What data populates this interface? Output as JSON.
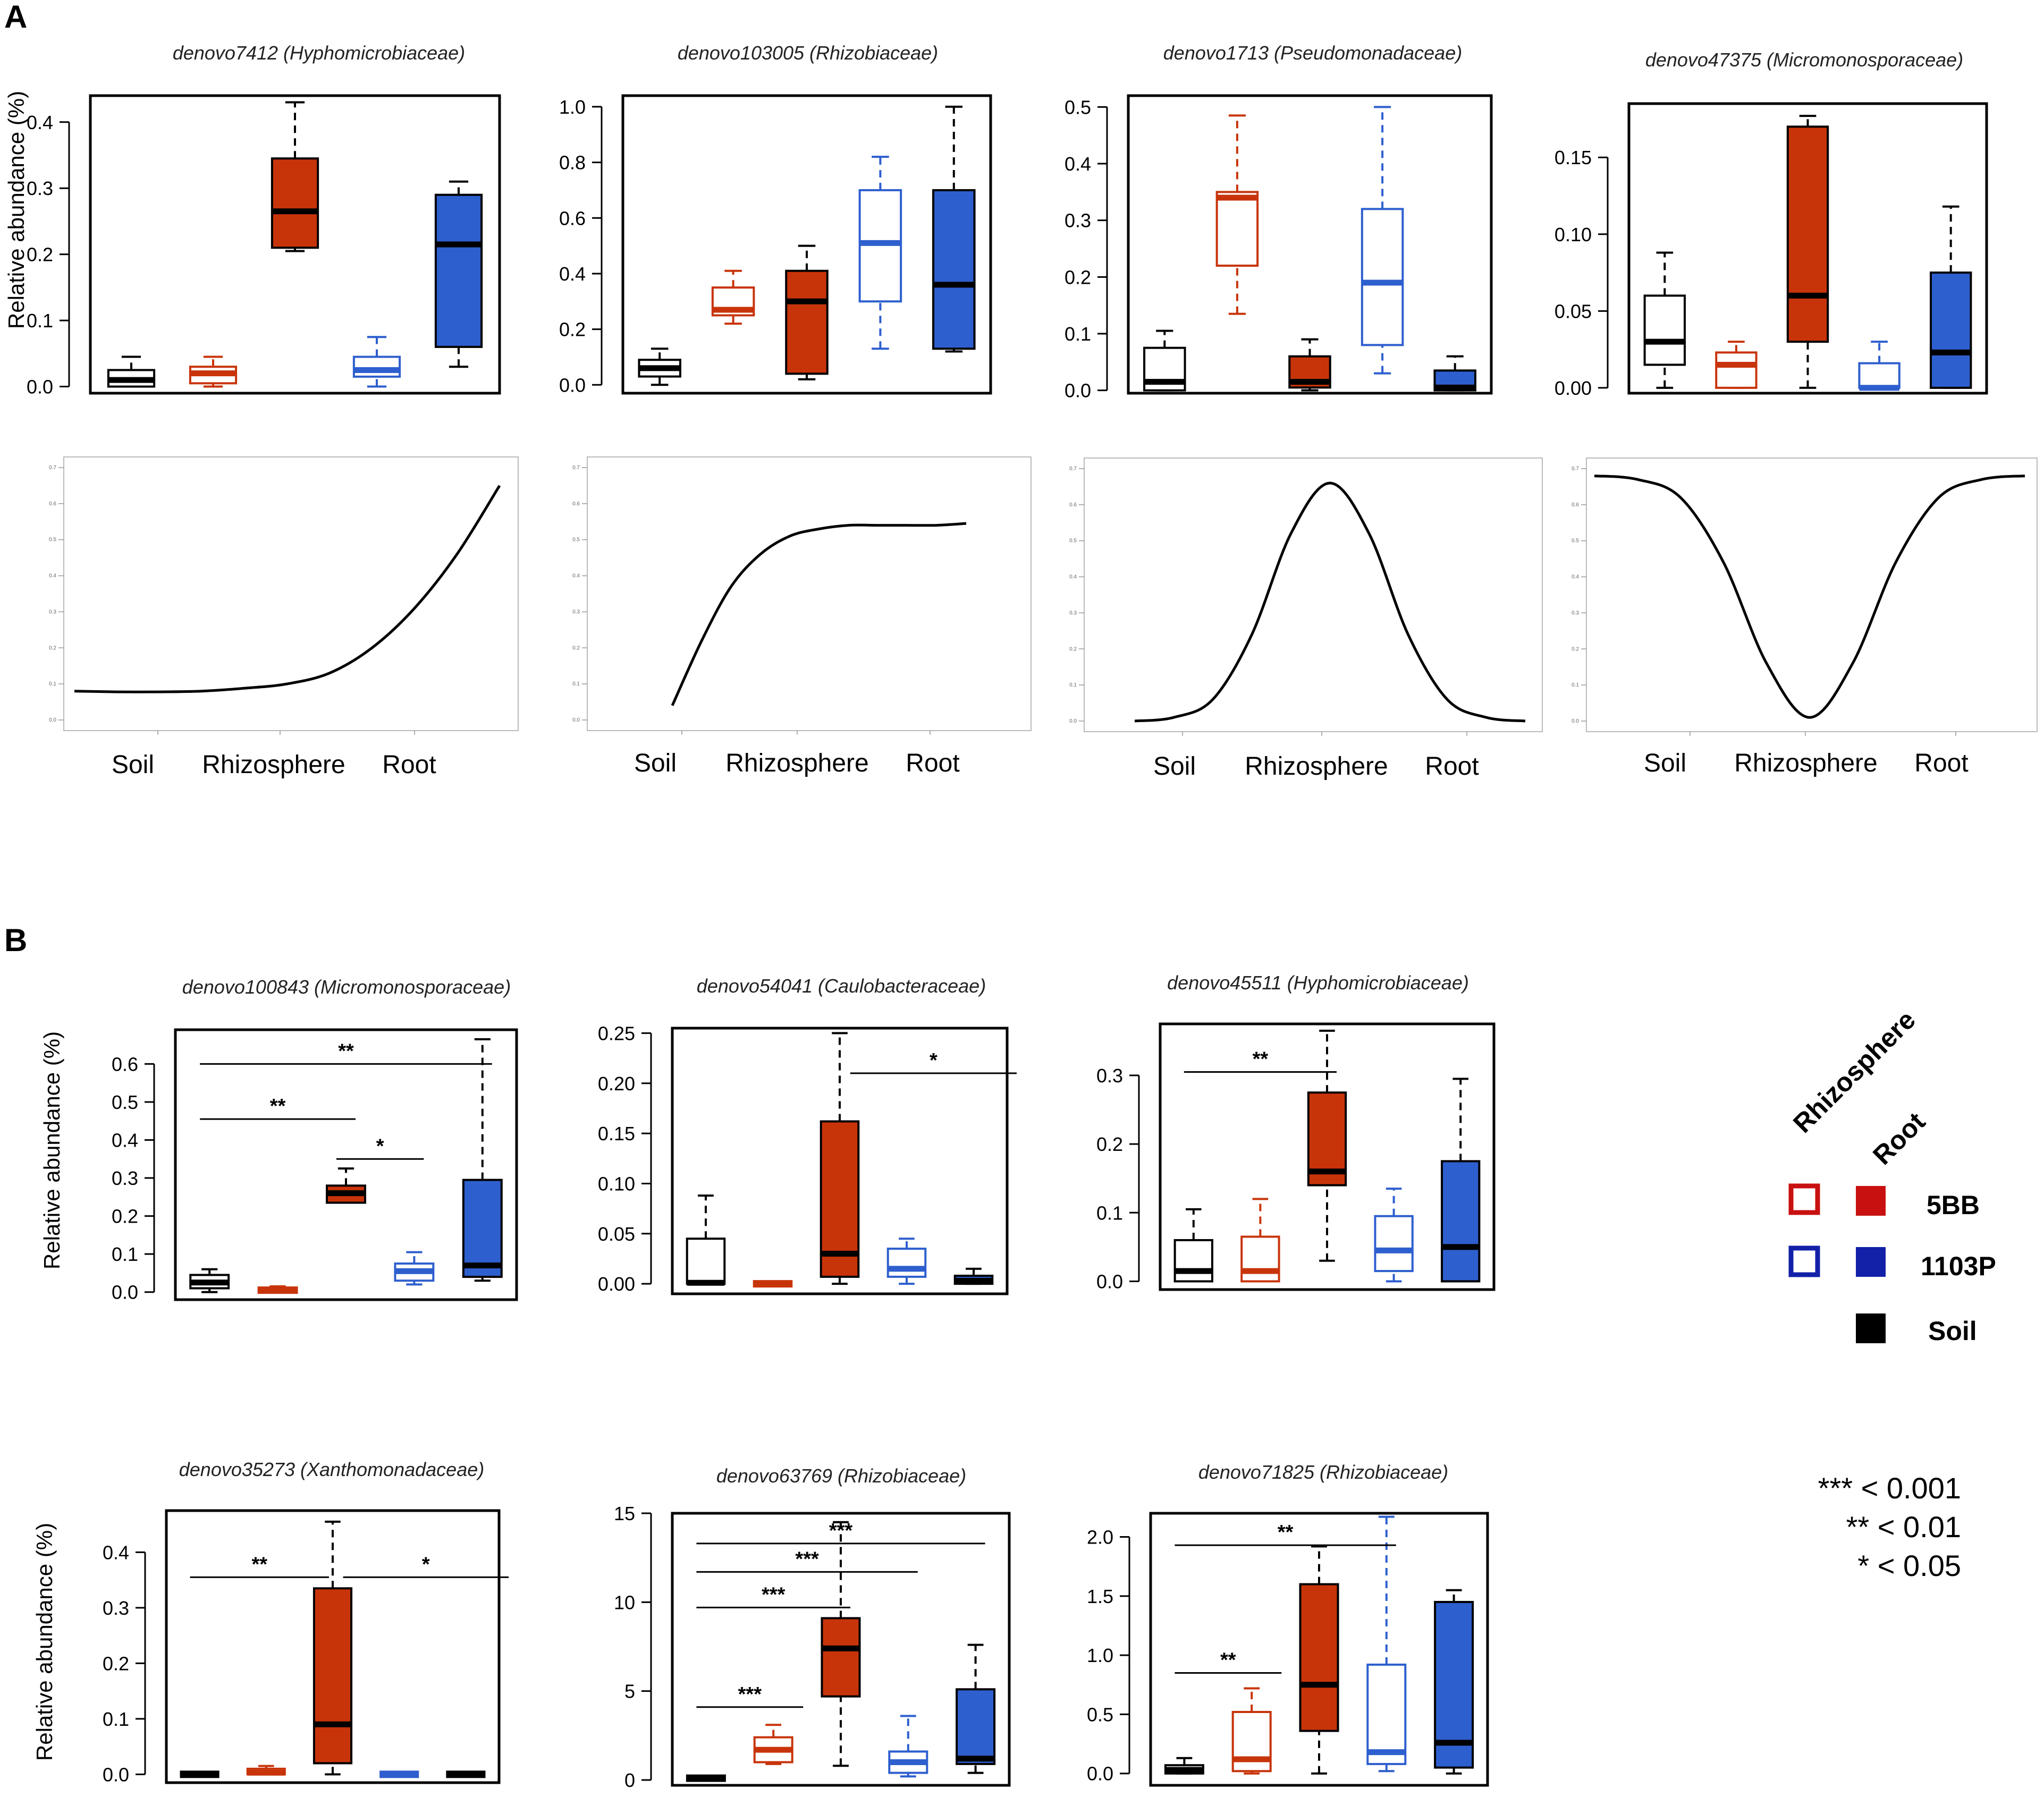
{
  "panels": {
    "a": "A",
    "b": "B"
  },
  "colors": {
    "soil": "#000000",
    "c5bb": "#c8340a",
    "c1103p": "#2e5fce",
    "legend5bb": "#c81010",
    "legend1103p": "#1320a8"
  },
  "groups": [
    "Soil",
    "5BB Rhizosphere",
    "5BB Root",
    "1103P Rhizosphere",
    "1103P Root"
  ],
  "axis_y_label": "Relative abundance (%)",
  "curve_x_labels": [
    "Soil",
    "Rhizosphere",
    "Root"
  ],
  "legend": {
    "col1": "Rhizosphere",
    "col2": "Root",
    "row1": "5BB",
    "row2": "1103P",
    "row3": "Soil",
    "sig1": "*** < 0.001",
    "sig2": "** < 0.01",
    "sig3": "* < 0.05"
  },
  "chart_data": [
    {
      "id": "A1",
      "type": "box",
      "title": "denovo7412 (Hyphomicrobiaceae)",
      "ylabel": "Relative abundance (%)",
      "ylim": [
        -0.01,
        0.44
      ],
      "yticks": [
        0.0,
        0.1,
        0.2,
        0.3,
        0.4
      ],
      "tick_labels": [
        "0.0",
        "0.1",
        "0.2",
        "0.3",
        "0.4"
      ],
      "boxes": [
        {
          "min": 0.0,
          "q1": 0.0,
          "med": 0.01,
          "q3": 0.025,
          "max": 0.045
        },
        {
          "min": 0.0,
          "q1": 0.005,
          "med": 0.02,
          "q3": 0.03,
          "max": 0.045
        },
        {
          "min": 0.205,
          "q1": 0.21,
          "med": 0.265,
          "q3": 0.345,
          "max": 0.43
        },
        {
          "min": 0.0,
          "q1": 0.015,
          "med": 0.025,
          "q3": 0.045,
          "max": 0.075
        },
        {
          "min": 0.03,
          "q1": 0.06,
          "med": 0.215,
          "q3": 0.29,
          "max": 0.31
        }
      ],
      "sig": []
    },
    {
      "id": "A2",
      "type": "box",
      "title": "denovo103005 (Rhizobiaceae)",
      "ylabel": "",
      "ylim": [
        -0.03,
        1.04
      ],
      "yticks": [
        0.0,
        0.2,
        0.4,
        0.6,
        0.8,
        1.0
      ],
      "tick_labels": [
        "0.0",
        "0.2",
        "0.4",
        "0.6",
        "0.8",
        "1.0"
      ],
      "boxes": [
        {
          "min": 0.0,
          "q1": 0.03,
          "med": 0.06,
          "q3": 0.09,
          "max": 0.13
        },
        {
          "min": 0.22,
          "q1": 0.25,
          "med": 0.27,
          "q3": 0.35,
          "max": 0.41
        },
        {
          "min": 0.02,
          "q1": 0.04,
          "med": 0.3,
          "q3": 0.41,
          "max": 0.5
        },
        {
          "min": 0.13,
          "q1": 0.3,
          "med": 0.51,
          "q3": 0.7,
          "max": 0.82
        },
        {
          "min": 0.12,
          "q1": 0.13,
          "med": 0.36,
          "q3": 0.7,
          "max": 1.0
        }
      ],
      "sig": []
    },
    {
      "id": "A3",
      "type": "box",
      "title": "denovo1713 (Pseudomonadaceae)",
      "ylabel": "",
      "ylim": [
        -0.005,
        0.52
      ],
      "yticks": [
        0.0,
        0.1,
        0.2,
        0.3,
        0.4,
        0.5
      ],
      "tick_labels": [
        "0.0",
        "0.1",
        "0.2",
        "0.3",
        "0.4",
        "0.5"
      ],
      "boxes": [
        {
          "min": 0.0,
          "q1": 0.0,
          "med": 0.015,
          "q3": 0.075,
          "max": 0.105
        },
        {
          "min": 0.135,
          "q1": 0.22,
          "med": 0.34,
          "q3": 0.35,
          "max": 0.485
        },
        {
          "min": 0.0,
          "q1": 0.005,
          "med": 0.015,
          "q3": 0.06,
          "max": 0.09
        },
        {
          "min": 0.03,
          "q1": 0.08,
          "med": 0.19,
          "q3": 0.32,
          "max": 0.5
        },
        {
          "min": 0.0,
          "q1": 0.0,
          "med": 0.005,
          "q3": 0.035,
          "max": 0.06
        }
      ],
      "sig": []
    },
    {
      "id": "A4",
      "type": "box",
      "title": "denovo47375 (Micromonosporaceae)",
      "ylabel": "",
      "ylim": [
        -0.0035,
        0.185
      ],
      "yticks": [
        0.0,
        0.05,
        0.1,
        0.15
      ],
      "tick_labels": [
        "0.00",
        "0.05",
        "0.10",
        "0.15"
      ],
      "boxes": [
        {
          "min": 0.0,
          "q1": 0.015,
          "med": 0.03,
          "q3": 0.06,
          "max": 0.088
        },
        {
          "min": 0.0,
          "q1": 0.0,
          "med": 0.015,
          "q3": 0.023,
          "max": 0.03
        },
        {
          "min": 0.0,
          "q1": 0.03,
          "med": 0.06,
          "q3": 0.17,
          "max": 0.177
        },
        {
          "min": 0.0,
          "q1": 0.0,
          "med": 0.0,
          "q3": 0.016,
          "max": 0.03
        },
        {
          "min": 0.0,
          "q1": 0.0,
          "med": 0.023,
          "q3": 0.075,
          "max": 0.118
        }
      ],
      "sig": []
    },
    {
      "id": "C1",
      "type": "line",
      "title": "",
      "shape": "exponential increase toward Root",
      "xlabels": [
        "Soil",
        "Rhizosphere",
        "Root"
      ],
      "ylim": [
        0,
        0.7
      ],
      "x": [
        0.0,
        0.1,
        0.2,
        0.3,
        0.4,
        0.5,
        0.6,
        0.7,
        0.8,
        0.9,
        1.0
      ],
      "y": [
        0.08,
        0.078,
        0.078,
        0.08,
        0.088,
        0.1,
        0.13,
        0.2,
        0.31,
        0.46,
        0.65
      ]
    },
    {
      "id": "C2",
      "type": "line",
      "title": "",
      "shape": "saturating increase",
      "xlabels": [
        "Soil",
        "Rhizosphere",
        "Root"
      ],
      "ylim": [
        0,
        0.7
      ],
      "x": [
        0.0,
        0.1,
        0.2,
        0.3,
        0.4,
        0.5,
        0.6,
        0.7,
        0.8,
        0.9,
        1.0
      ],
      "y": [
        0.04,
        0.22,
        0.37,
        0.46,
        0.51,
        0.53,
        0.54,
        0.54,
        0.54,
        0.54,
        0.545
      ]
    },
    {
      "id": "C3",
      "type": "line",
      "title": "",
      "shape": "peak at Rhizosphere",
      "xlabels": [
        "Soil",
        "Rhizosphere",
        "Root"
      ],
      "ylim": [
        0,
        0.7
      ],
      "x": [
        0.0,
        0.1,
        0.2,
        0.3,
        0.4,
        0.5,
        0.6,
        0.7,
        0.8,
        0.9,
        1.0
      ],
      "y": [
        0.0,
        0.01,
        0.06,
        0.24,
        0.52,
        0.66,
        0.52,
        0.24,
        0.06,
        0.01,
        0.0
      ]
    },
    {
      "id": "C4",
      "type": "line",
      "title": "",
      "shape": "dip at Rhizosphere",
      "xlabels": [
        "Soil",
        "Rhizosphere",
        "Root"
      ],
      "ylim": [
        0,
        0.7
      ],
      "x": [
        0.0,
        0.1,
        0.2,
        0.3,
        0.4,
        0.5,
        0.6,
        0.7,
        0.8,
        0.9,
        1.0
      ],
      "y": [
        0.68,
        0.67,
        0.62,
        0.44,
        0.16,
        0.01,
        0.16,
        0.44,
        0.62,
        0.67,
        0.68
      ]
    },
    {
      "id": "B1",
      "type": "box",
      "title": "denovo100843 (Micromonosporaceae)",
      "ylabel": "Relative abundance (%)",
      "ylim": [
        -0.02,
        0.69
      ],
      "yticks": [
        0.0,
        0.1,
        0.2,
        0.3,
        0.4,
        0.5,
        0.6
      ],
      "tick_labels": [
        "0.0",
        "0.1",
        "0.2",
        "0.3",
        "0.4",
        "0.5",
        "0.6"
      ],
      "boxes": [
        {
          "min": 0.0,
          "q1": 0.01,
          "med": 0.025,
          "q3": 0.045,
          "max": 0.06
        },
        {
          "min": 0.0,
          "q1": 0.0,
          "med": 0.005,
          "q3": 0.01,
          "max": 0.015
        },
        {
          "min": 0.235,
          "q1": 0.235,
          "med": 0.26,
          "q3": 0.28,
          "max": 0.325
        },
        {
          "min": 0.02,
          "q1": 0.03,
          "med": 0.055,
          "q3": 0.075,
          "max": 0.105
        },
        {
          "min": 0.03,
          "q1": 0.04,
          "med": 0.07,
          "q3": 0.295,
          "max": 0.665
        }
      ],
      "sig": [
        {
          "from": 0,
          "to": 4,
          "y": 0.6,
          "label": "**"
        },
        {
          "from": 0,
          "to": 2,
          "y": 0.455,
          "label": "**"
        },
        {
          "from": 2,
          "to": 3,
          "y": 0.35,
          "label": "*"
        }
      ]
    },
    {
      "id": "B2",
      "type": "box",
      "title": "denovo54041 (Caulobacteraceae)",
      "ylabel": "",
      "ylim": [
        -0.01,
        0.255
      ],
      "yticks": [
        0.0,
        0.05,
        0.1,
        0.15,
        0.2,
        0.25
      ],
      "tick_labels": [
        "0.00",
        "0.05",
        "0.10",
        "0.15",
        "0.20",
        "0.25"
      ],
      "boxes": [
        {
          "min": 0.0,
          "q1": 0.0,
          "med": 0.001,
          "q3": 0.045,
          "max": 0.088
        },
        {
          "min": 0.0,
          "q1": 0.0,
          "med": 0.0,
          "q3": 0.001,
          "max": 0.002
        },
        {
          "min": 0.0,
          "q1": 0.007,
          "med": 0.03,
          "q3": 0.162,
          "max": 0.25
        },
        {
          "min": 0.0,
          "q1": 0.007,
          "med": 0.015,
          "q3": 0.035,
          "max": 0.045
        },
        {
          "min": 0.0,
          "q1": 0.0,
          "med": 0.003,
          "q3": 0.008,
          "max": 0.015
        }
      ],
      "sig": [
        {
          "from": 2.3,
          "to": 4.5,
          "y": 0.21,
          "label": "*"
        }
      ]
    },
    {
      "id": "B3",
      "type": "box",
      "title": "denovo45511 (Hyphomicrobiaceae)",
      "ylabel": "",
      "ylim": [
        -0.012,
        0.375
      ],
      "yticks": [
        0.0,
        0.1,
        0.2,
        0.3
      ],
      "tick_labels": [
        "0.0",
        "0.1",
        "0.2",
        "0.3"
      ],
      "boxes": [
        {
          "min": 0.0,
          "q1": 0.0,
          "med": 0.015,
          "q3": 0.06,
          "max": 0.105
        },
        {
          "min": 0.0,
          "q1": 0.0,
          "med": 0.015,
          "q3": 0.065,
          "max": 0.12
        },
        {
          "min": 0.03,
          "q1": 0.14,
          "med": 0.16,
          "q3": 0.275,
          "max": 0.365
        },
        {
          "min": 0.0,
          "q1": 0.015,
          "med": 0.045,
          "q3": 0.095,
          "max": 0.135
        },
        {
          "min": 0.0,
          "q1": 0.0,
          "med": 0.05,
          "q3": 0.175,
          "max": 0.295
        }
      ],
      "sig": [
        {
          "from": 0,
          "to": 2,
          "y": 0.305,
          "label": "**"
        }
      ]
    },
    {
      "id": "B4",
      "type": "box",
      "title": "denovo35273 (Xanthomonadaceae)",
      "ylabel": "Relative abundance (%)",
      "ylim": [
        -0.015,
        0.475
      ],
      "yticks": [
        0.0,
        0.1,
        0.2,
        0.3,
        0.4
      ],
      "tick_labels": [
        "0.0",
        "0.1",
        "0.2",
        "0.3",
        "0.4"
      ],
      "boxes": [
        {
          "min": 0.0,
          "q1": 0.0,
          "med": 0.0,
          "q3": 0.002,
          "max": 0.003
        },
        {
          "min": 0.0,
          "q1": 0.0,
          "med": 0.003,
          "q3": 0.01,
          "max": 0.015
        },
        {
          "min": 0.0,
          "q1": 0.02,
          "med": 0.09,
          "q3": 0.335,
          "max": 0.455
        },
        {
          "min": 0.0,
          "q1": 0.0,
          "med": 0.0,
          "q3": 0.002,
          "max": 0.003
        },
        {
          "min": 0.0,
          "q1": 0.0,
          "med": 0.0,
          "q3": 0.002,
          "max": 0.003
        }
      ],
      "sig": [
        {
          "from": 0,
          "to": 1.8,
          "y": 0.355,
          "label": "**"
        },
        {
          "from": 2.3,
          "to": 4.5,
          "y": 0.355,
          "label": "*"
        }
      ]
    },
    {
      "id": "B5",
      "type": "box",
      "title": "denovo63769 (Rhizobiaceae)",
      "ylabel": "",
      "ylim": [
        -0.3,
        15.0
      ],
      "yticks": [
        0,
        5,
        10,
        15
      ],
      "tick_labels": [
        "0",
        "5",
        "10",
        "15"
      ],
      "boxes": [
        {
          "min": 0.0,
          "q1": 0.05,
          "med": 0.1,
          "q3": 0.15,
          "max": 0.2
        },
        {
          "min": 0.9,
          "q1": 1.0,
          "med": 1.7,
          "q3": 2.4,
          "max": 3.1
        },
        {
          "min": 0.8,
          "q1": 4.7,
          "med": 7.4,
          "q3": 9.1,
          "max": 14.5
        },
        {
          "min": 0.2,
          "q1": 0.4,
          "med": 1.0,
          "q3": 1.6,
          "max": 3.6
        },
        {
          "min": 0.4,
          "q1": 0.9,
          "med": 1.2,
          "q3": 5.1,
          "max": 7.6
        }
      ],
      "sig": [
        {
          "from": 0,
          "to": 4,
          "y": 13.3,
          "label": "***"
        },
        {
          "from": 0,
          "to": 3,
          "y": 11.7,
          "label": "***"
        },
        {
          "from": 0,
          "to": 2,
          "y": 9.7,
          "label": "***"
        },
        {
          "from": 0,
          "to": 1.3,
          "y": 4.1,
          "label": "***"
        }
      ]
    },
    {
      "id": "B6",
      "type": "box",
      "title": "denovo71825 (Rhizobiaceae)",
      "ylabel": "",
      "ylim": [
        -0.1,
        2.2
      ],
      "yticks": [
        0.0,
        0.5,
        1.0,
        1.5,
        2.0
      ],
      "tick_labels": [
        "0.0",
        "0.5",
        "1.0",
        "1.5",
        "2.0"
      ],
      "boxes": [
        {
          "min": 0.0,
          "q1": 0.0,
          "med": 0.03,
          "q3": 0.07,
          "max": 0.13
        },
        {
          "min": 0.0,
          "q1": 0.02,
          "med": 0.12,
          "q3": 0.52,
          "max": 0.72
        },
        {
          "min": 0.0,
          "q1": 0.36,
          "med": 0.75,
          "q3": 1.6,
          "max": 1.92
        },
        {
          "min": 0.02,
          "q1": 0.08,
          "med": 0.18,
          "q3": 0.92,
          "max": 2.17
        },
        {
          "min": 0.0,
          "q1": 0.05,
          "med": 0.26,
          "q3": 1.45,
          "max": 1.55
        }
      ],
      "sig": [
        {
          "from": 0,
          "to": 3,
          "y": 1.93,
          "label": "**"
        },
        {
          "from": 0,
          "to": 1.3,
          "y": 0.85,
          "label": "**"
        }
      ]
    }
  ]
}
